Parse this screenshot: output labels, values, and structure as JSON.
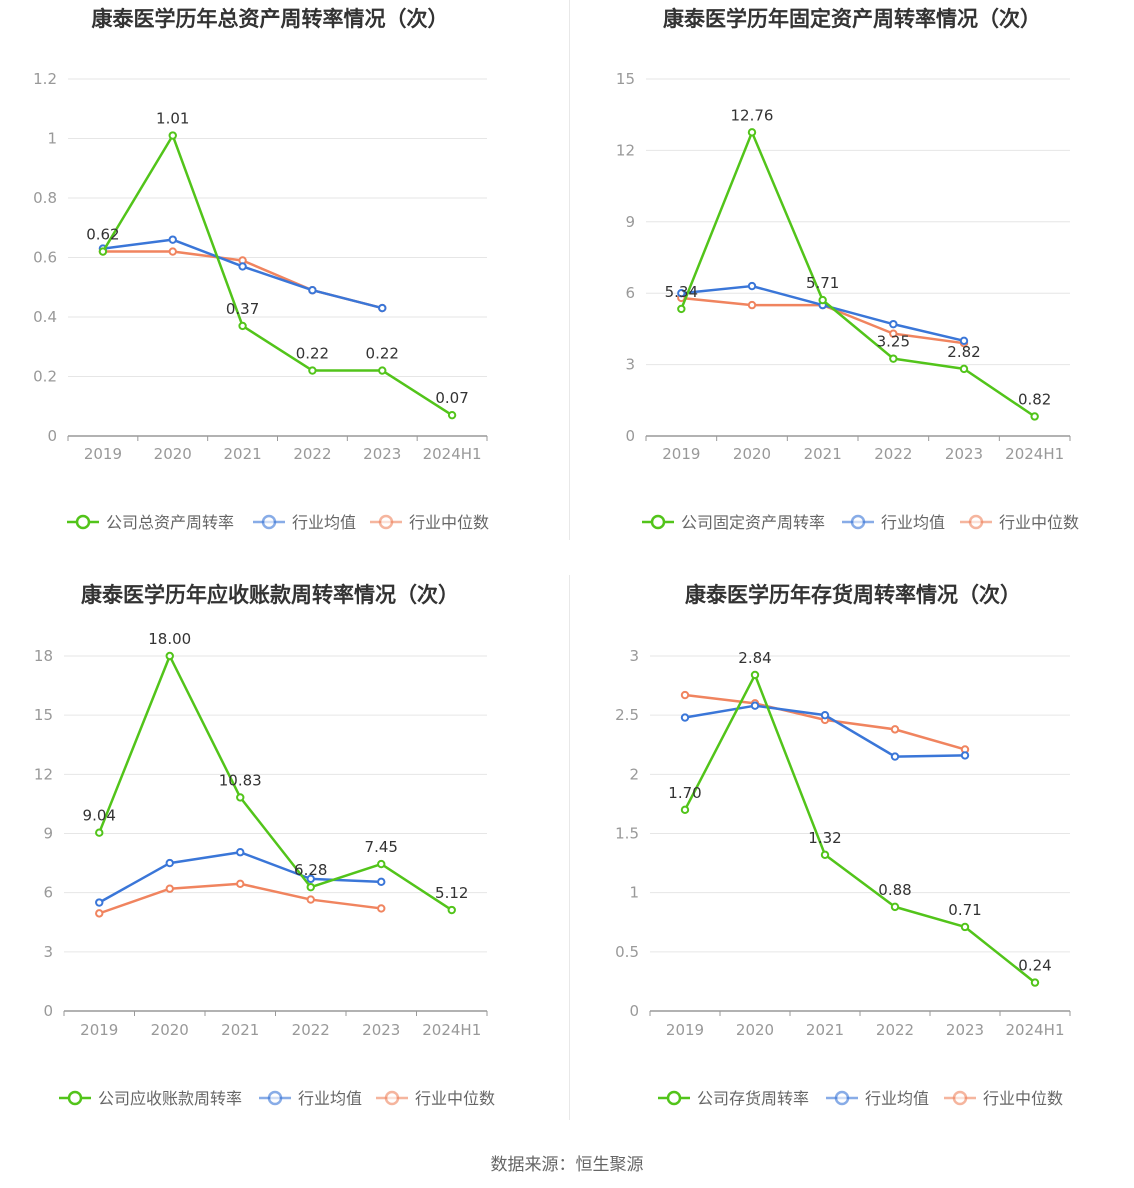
{
  "source_text": "数据来源：恒生聚源",
  "legend_common": {
    "avg": "行业均值",
    "median": "行业中位数"
  },
  "colors": {
    "company": "#52c41a",
    "avg": "#3a76d8",
    "median": "#f0845f",
    "grid": "#e6e6e6",
    "axis": "#999999",
    "title": "#333333",
    "label": "#333333",
    "tick": "#999999",
    "legend_text": "#666666"
  },
  "chart_data": [
    {
      "type": "line",
      "title": "康泰医学历年总资产周转率情况（次）",
      "categories": [
        "2019",
        "2020",
        "2021",
        "2022",
        "2023",
        "2024H1"
      ],
      "ylim": [
        0,
        1.2
      ],
      "yticks": [
        0,
        0.2,
        0.4,
        0.6,
        0.8,
        1,
        1.2
      ],
      "ytick_labels": [
        "0",
        "0.2",
        "0.4",
        "0.6",
        "0.8",
        "1",
        "1.2"
      ],
      "series": [
        {
          "name": "公司总资产周转率",
          "key": "company",
          "values": [
            0.62,
            1.01,
            0.37,
            0.22,
            0.22,
            0.07
          ],
          "labels": [
            "0.62",
            "1.01",
            "0.37",
            "0.22",
            "0.22",
            "0.07"
          ]
        },
        {
          "name": "行业均值",
          "key": "avg",
          "values": [
            0.63,
            0.66,
            0.57,
            0.49,
            0.43,
            null
          ]
        },
        {
          "name": "行业中位数",
          "key": "median",
          "values": [
            0.62,
            0.62,
            0.59,
            0.49,
            0.43,
            null
          ]
        }
      ]
    },
    {
      "type": "line",
      "title": "康泰医学历年固定资产周转率情况（次）",
      "categories": [
        "2019",
        "2020",
        "2021",
        "2022",
        "2023",
        "2024H1"
      ],
      "ylim": [
        0,
        15
      ],
      "yticks": [
        0,
        3,
        6,
        9,
        12,
        15
      ],
      "ytick_labels": [
        "0",
        "3",
        "6",
        "9",
        "12",
        "15"
      ],
      "series": [
        {
          "name": "公司固定资产周转率",
          "key": "company",
          "values": [
            5.34,
            12.76,
            5.71,
            3.25,
            2.82,
            0.82
          ],
          "labels": [
            "5.34",
            "12.76",
            "5.71",
            "3.25",
            "2.82",
            "0.82"
          ]
        },
        {
          "name": "行业均值",
          "key": "avg",
          "values": [
            6.0,
            6.3,
            5.5,
            4.7,
            4.0,
            null
          ]
        },
        {
          "name": "行业中位数",
          "key": "median",
          "values": [
            5.8,
            5.5,
            5.5,
            4.3,
            3.9,
            null
          ]
        }
      ]
    },
    {
      "type": "line",
      "title": "康泰医学历年应收账款周转率情况（次）",
      "categories": [
        "2019",
        "2020",
        "2021",
        "2022",
        "2023",
        "2024H1"
      ],
      "ylim": [
        0,
        18
      ],
      "yticks": [
        0,
        3,
        6,
        9,
        12,
        15,
        18
      ],
      "ytick_labels": [
        "0",
        "3",
        "6",
        "9",
        "12",
        "15",
        "18"
      ],
      "series": [
        {
          "name": "公司应收账款周转率",
          "key": "company",
          "values": [
            9.04,
            18.0,
            10.83,
            6.28,
            7.45,
            5.12
          ],
          "labels": [
            "9.04",
            "18.00",
            "10.83",
            "6.28",
            "7.45",
            "5.12"
          ]
        },
        {
          "name": "行业均值",
          "key": "avg",
          "values": [
            5.5,
            7.5,
            8.05,
            6.7,
            6.55,
            null
          ]
        },
        {
          "name": "行业中位数",
          "key": "median",
          "values": [
            4.95,
            6.2,
            6.45,
            5.65,
            5.2,
            null
          ]
        }
      ]
    },
    {
      "type": "line",
      "title": "康泰医学历年存货周转率情况（次）",
      "categories": [
        "2019",
        "2020",
        "2021",
        "2022",
        "2023",
        "2024H1"
      ],
      "ylim": [
        0,
        3
      ],
      "yticks": [
        0,
        0.5,
        1,
        1.5,
        2,
        2.5,
        3
      ],
      "ytick_labels": [
        "0",
        "0.5",
        "1",
        "1.5",
        "2",
        "2.5",
        "3"
      ],
      "series": [
        {
          "name": "公司存货周转率",
          "key": "company",
          "values": [
            1.7,
            2.84,
            1.32,
            0.88,
            0.71,
            0.24
          ],
          "labels": [
            "1.70",
            "2.84",
            "1.32",
            "0.88",
            "0.71",
            "0.24"
          ]
        },
        {
          "name": "行业均值",
          "key": "avg",
          "values": [
            2.48,
            2.58,
            2.5,
            2.15,
            2.16,
            null
          ]
        },
        {
          "name": "行业中位数",
          "key": "median",
          "values": [
            2.67,
            2.6,
            2.46,
            2.38,
            2.21,
            null
          ]
        }
      ]
    }
  ]
}
